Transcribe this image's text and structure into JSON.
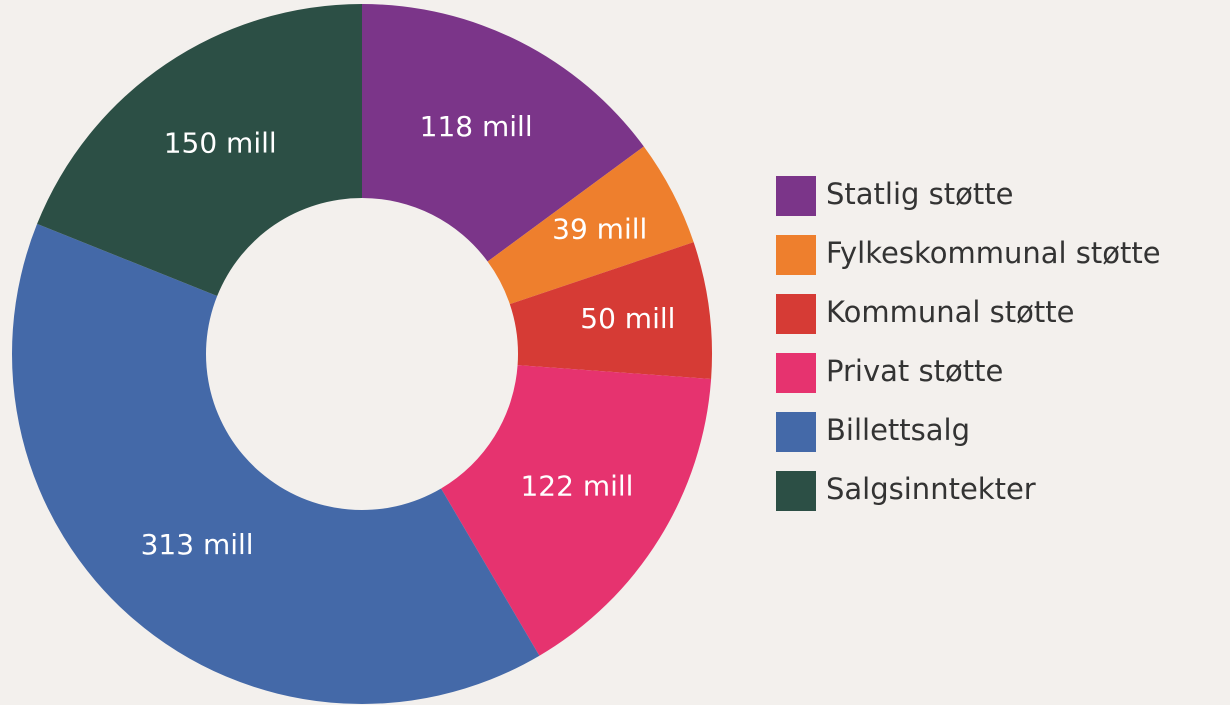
{
  "chart_data": {
    "type": "donut",
    "categories": [
      "Statlig støtte",
      "Fylkeskommunal støtte",
      "Kommunal støtte",
      "Privat støtte",
      "Billettsalg",
      "Salgsinntekter"
    ],
    "values": [
      118,
      39,
      50,
      122,
      313,
      150
    ],
    "value_labels": [
      "118 mill",
      "39 mill",
      "50 mill",
      "122 mill",
      "313 mill",
      "150 mill"
    ],
    "colors": [
      "#7b3589",
      "#ee7f2d",
      "#d63b35",
      "#e6336f",
      "#4469a8",
      "#2c4f45"
    ],
    "legend": "right"
  }
}
